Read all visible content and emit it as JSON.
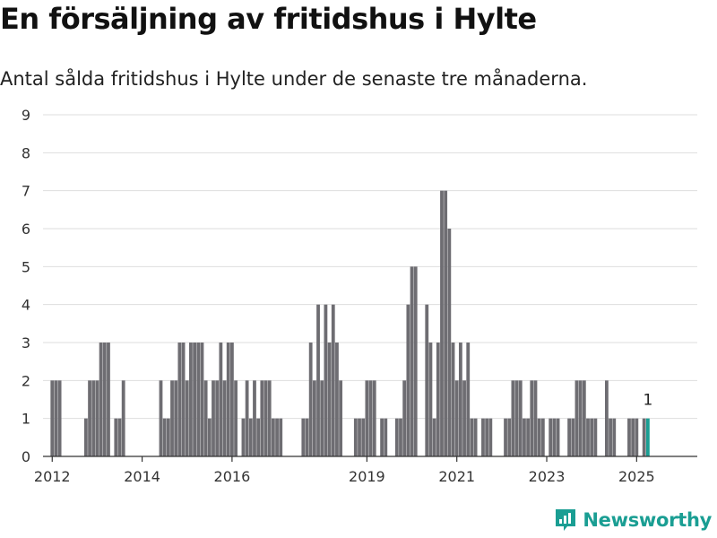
{
  "title": "En försäljning av fritidshus i Hylte",
  "subtitle": "Antal sålda fritidshus i Hylte under de senaste tre månaderna.",
  "brand": {
    "name": "Newsworthy",
    "icon": "newsworthy-logo-icon",
    "color": "#1a9e93"
  },
  "chart_data": {
    "type": "bar",
    "ylim": [
      0,
      9
    ],
    "yticks": [
      0,
      1,
      2,
      3,
      4,
      5,
      6,
      7,
      8,
      9
    ],
    "xticks": [
      {
        "label": "2012",
        "month": "2012-01"
      },
      {
        "label": "2014",
        "month": "2014-01"
      },
      {
        "label": "2016",
        "month": "2016-01"
      },
      {
        "label": "2019",
        "month": "2019-01"
      },
      {
        "label": "2021",
        "month": "2021-01"
      },
      {
        "label": "2023",
        "month": "2023-01"
      },
      {
        "label": "2025",
        "month": "2025-01"
      }
    ],
    "grid": true,
    "bar_color": "#6e6d72",
    "highlight_color": "#1a9e93",
    "highlight_label": "1",
    "x": [
      "2012-01",
      "2012-02",
      "2012-03",
      "2012-10",
      "2012-11",
      "2012-12",
      "2013-01",
      "2013-02",
      "2013-03",
      "2013-04",
      "2013-06",
      "2013-07",
      "2013-08",
      "2014-06",
      "2014-07",
      "2014-08",
      "2014-09",
      "2014-10",
      "2014-11",
      "2014-12",
      "2015-01",
      "2015-02",
      "2015-03",
      "2015-04",
      "2015-05",
      "2015-06",
      "2015-07",
      "2015-08",
      "2015-09",
      "2015-10",
      "2015-11",
      "2015-12",
      "2016-01",
      "2016-02",
      "2016-04",
      "2016-05",
      "2016-06",
      "2016-07",
      "2016-08",
      "2016-09",
      "2016-10",
      "2016-11",
      "2016-12",
      "2017-01",
      "2017-02",
      "2017-08",
      "2017-09",
      "2017-10",
      "2017-11",
      "2017-12",
      "2018-01",
      "2018-02",
      "2018-03",
      "2018-04",
      "2018-05",
      "2018-06",
      "2018-10",
      "2018-11",
      "2018-12",
      "2019-01",
      "2019-02",
      "2019-03",
      "2019-05",
      "2019-06",
      "2019-09",
      "2019-10",
      "2019-11",
      "2019-12",
      "2020-01",
      "2020-02",
      "2020-05",
      "2020-06",
      "2020-07",
      "2020-08",
      "2020-09",
      "2020-10",
      "2020-11",
      "2020-12",
      "2021-01",
      "2021-02",
      "2021-03",
      "2021-04",
      "2021-05",
      "2021-06",
      "2021-08",
      "2021-09",
      "2021-10",
      "2022-02",
      "2022-03",
      "2022-04",
      "2022-05",
      "2022-06",
      "2022-07",
      "2022-08",
      "2022-09",
      "2022-10",
      "2022-11",
      "2022-12",
      "2023-02",
      "2023-03",
      "2023-04",
      "2023-07",
      "2023-08",
      "2023-09",
      "2023-10",
      "2023-11",
      "2023-12",
      "2024-01",
      "2024-02",
      "2024-05",
      "2024-06",
      "2024-07",
      "2024-11",
      "2024-12",
      "2025-01",
      "2025-03",
      "2025-04"
    ],
    "values": [
      2,
      2,
      2,
      1,
      2,
      2,
      2,
      3,
      3,
      3,
      1,
      1,
      2,
      2,
      1,
      1,
      2,
      2,
      3,
      3,
      2,
      3,
      3,
      3,
      3,
      2,
      1,
      2,
      2,
      3,
      2,
      3,
      3,
      2,
      1,
      2,
      1,
      2,
      1,
      2,
      2,
      2,
      1,
      1,
      1,
      1,
      1,
      3,
      2,
      4,
      2,
      4,
      3,
      4,
      3,
      2,
      1,
      1,
      1,
      2,
      2,
      2,
      1,
      1,
      1,
      1,
      2,
      4,
      5,
      5,
      4,
      3,
      1,
      3,
      7,
      7,
      6,
      3,
      2,
      3,
      2,
      3,
      1,
      1,
      1,
      1,
      1,
      1,
      1,
      2,
      2,
      2,
      1,
      1,
      2,
      2,
      1,
      1,
      1,
      1,
      1,
      1,
      1,
      2,
      2,
      2,
      1,
      1,
      1,
      2,
      1,
      1,
      1,
      1,
      1,
      1,
      1
    ]
  }
}
